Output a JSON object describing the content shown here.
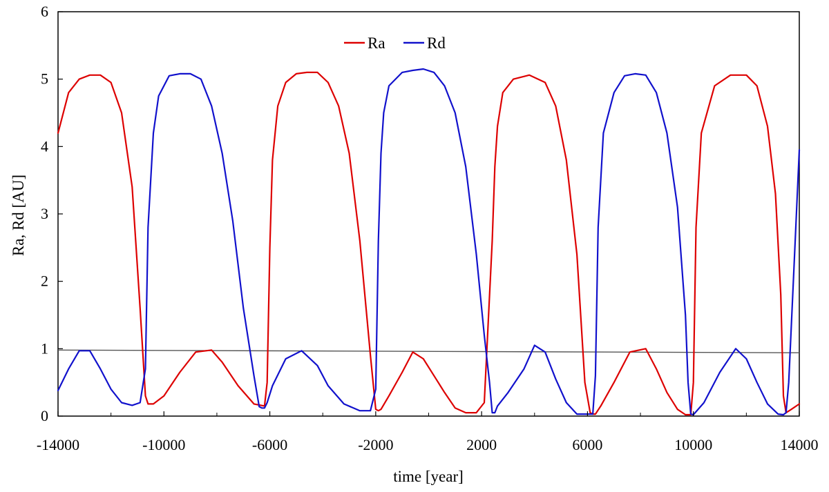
{
  "chart_data": {
    "type": "line",
    "title": "",
    "xlabel": "time [year]",
    "ylabel": "Ra, Rd [AU]",
    "xlim": [
      -14000,
      14000
    ],
    "ylim": [
      0,
      6
    ],
    "x_ticks": [
      -14000,
      -10000,
      -6000,
      -2000,
      2000,
      6000,
      10000,
      14000
    ],
    "x_tick_labels": [
      "-14000",
      "-10000",
      "-6000",
      "-2000",
      "2000",
      "6000",
      "10000",
      "14000"
    ],
    "y_ticks": [
      0,
      1,
      2,
      3,
      4,
      5,
      6
    ],
    "y_tick_labels": [
      "0",
      "1",
      "2",
      "3",
      "4",
      "5",
      "6"
    ],
    "grid": false,
    "legend": {
      "position": "top-center",
      "entries": [
        "Ra",
        "Rd"
      ]
    },
    "reference_line": {
      "y_start": 0.98,
      "y_end": 0.94,
      "color": "#555555"
    },
    "series": [
      {
        "name": "Ra",
        "color": "#dd0000",
        "x": [
          -14000,
          -13600,
          -13200,
          -12800,
          -12400,
          -12000,
          -11600,
          -11200,
          -10900,
          -10700,
          -10600,
          -10400,
          -10000,
          -9400,
          -8800,
          -8200,
          -7800,
          -7200,
          -6600,
          -6200,
          -6100,
          -6000,
          -5900,
          -5700,
          -5400,
          -5000,
          -4600,
          -4200,
          -3800,
          -3400,
          -3000,
          -2600,
          -2200,
          -2000,
          -1900,
          -1800,
          -1500,
          -1000,
          -600,
          -200,
          200,
          600,
          1000,
          1400,
          1800,
          2100,
          2400,
          2500,
          2600,
          2800,
          3200,
          3800,
          4400,
          4800,
          5200,
          5600,
          5900,
          6100,
          6200,
          6300,
          6500,
          7000,
          7600,
          8200,
          8600,
          9000,
          9400,
          9700,
          9900,
          10000,
          10100,
          10300,
          10800,
          11400,
          12000,
          12400,
          12800,
          13100,
          13300,
          13400,
          13500,
          13700,
          14000
        ],
        "y": [
          4.2,
          4.8,
          5.0,
          5.06,
          5.06,
          4.95,
          4.5,
          3.4,
          1.6,
          0.3,
          0.18,
          0.18,
          0.3,
          0.65,
          0.95,
          0.98,
          0.8,
          0.45,
          0.18,
          0.15,
          0.5,
          2.5,
          3.8,
          4.6,
          4.95,
          5.08,
          5.1,
          5.1,
          4.95,
          4.6,
          3.9,
          2.6,
          0.9,
          0.1,
          0.08,
          0.1,
          0.3,
          0.65,
          0.95,
          0.85,
          0.6,
          0.35,
          0.12,
          0.05,
          0.05,
          0.2,
          2.6,
          3.7,
          4.3,
          4.8,
          5.0,
          5.06,
          4.95,
          4.6,
          3.8,
          2.4,
          0.5,
          0.05,
          0.03,
          0.03,
          0.15,
          0.5,
          0.95,
          1.0,
          0.7,
          0.35,
          0.1,
          0.02,
          0.02,
          0.5,
          2.8,
          4.2,
          4.9,
          5.06,
          5.06,
          4.9,
          4.3,
          3.3,
          1.8,
          0.3,
          0.05,
          0.1,
          0.18
        ]
      },
      {
        "name": "Rd",
        "color": "#1111cc",
        "x": [
          -14000,
          -13600,
          -13200,
          -12800,
          -12400,
          -12000,
          -11600,
          -11200,
          -10900,
          -10700,
          -10600,
          -10400,
          -10200,
          -9800,
          -9400,
          -9000,
          -8600,
          -8200,
          -7800,
          -7400,
          -7000,
          -6600,
          -6400,
          -6300,
          -6200,
          -6100,
          -5900,
          -5400,
          -4800,
          -4200,
          -3800,
          -3200,
          -2600,
          -2200,
          -2000,
          -1900,
          -1800,
          -1700,
          -1500,
          -1000,
          -600,
          -200,
          200,
          600,
          1000,
          1400,
          1800,
          2100,
          2300,
          2400,
          2500,
          2600,
          3000,
          3600,
          4000,
          4400,
          4800,
          5200,
          5600,
          6000,
          6200,
          6300,
          6400,
          6600,
          7000,
          7400,
          7800,
          8200,
          8600,
          9000,
          9400,
          9700,
          9800,
          9900,
          10000,
          10400,
          11000,
          11600,
          12000,
          12400,
          12800,
          13200,
          13400,
          13500,
          13600,
          13800,
          14000
        ],
        "y": [
          0.38,
          0.7,
          0.97,
          0.97,
          0.7,
          0.4,
          0.2,
          0.16,
          0.2,
          0.7,
          2.8,
          4.2,
          4.75,
          5.05,
          5.08,
          5.08,
          5.0,
          4.6,
          3.9,
          2.9,
          1.6,
          0.6,
          0.14,
          0.12,
          0.12,
          0.2,
          0.45,
          0.85,
          0.97,
          0.75,
          0.45,
          0.18,
          0.08,
          0.08,
          0.4,
          2.6,
          3.9,
          4.5,
          4.9,
          5.1,
          5.13,
          5.15,
          5.1,
          4.9,
          4.5,
          3.7,
          2.4,
          1.2,
          0.5,
          0.05,
          0.05,
          0.15,
          0.35,
          0.7,
          1.05,
          0.95,
          0.55,
          0.2,
          0.03,
          0.03,
          0.03,
          0.6,
          2.8,
          4.2,
          4.8,
          5.05,
          5.08,
          5.06,
          4.8,
          4.2,
          3.1,
          1.5,
          0.5,
          0.03,
          0.02,
          0.2,
          0.65,
          1.0,
          0.85,
          0.5,
          0.18,
          0.03,
          0.02,
          0.05,
          0.5,
          2.2,
          3.95
        ]
      }
    ]
  }
}
